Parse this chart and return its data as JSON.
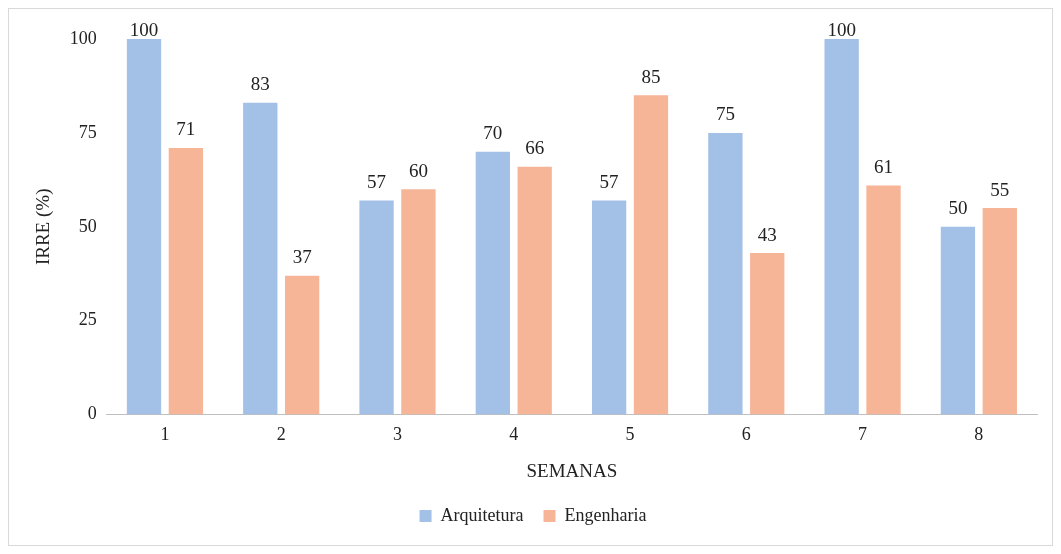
{
  "chart_data": {
    "type": "bar",
    "xlabel": "SEMANAS",
    "ylabel": "IRRE (%)",
    "categories": [
      "1",
      "2",
      "3",
      "4",
      "5",
      "6",
      "7",
      "8"
    ],
    "series": [
      {
        "name": "Arquitetura",
        "color": "#a3c0e6",
        "values": [
          100,
          83,
          57,
          70,
          57,
          75,
          100,
          50
        ]
      },
      {
        "name": "Engenharia",
        "color": "#f7b597",
        "values": [
          71,
          37,
          60,
          66,
          85,
          43,
          61,
          55
        ]
      }
    ],
    "ylim": [
      0,
      100
    ],
    "yticks": [
      0,
      25,
      50,
      75,
      100
    ],
    "grid": false,
    "legend": "bottom",
    "data_labels": true
  }
}
